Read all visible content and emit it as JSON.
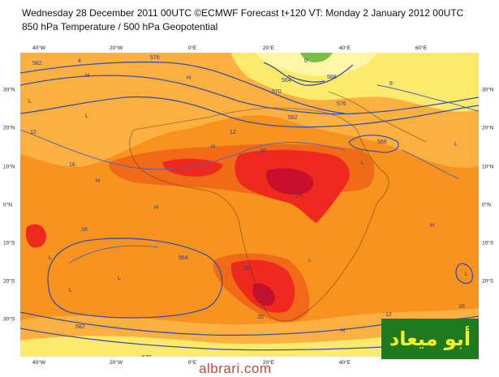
{
  "header": {
    "line1": "Wednesday 28 December 2011 00UTC ©ECMWF Forecast t+120 VT: Monday 2 January 2012 00UTC",
    "line2": "850 hPa Temperature / 500 hPa Geopotential"
  },
  "axes": {
    "lon_ticks": [
      "40°W",
      "20°W",
      "0°E",
      "20°E",
      "40°E",
      "60°E"
    ],
    "lat_ticks": [
      "30°N",
      "20°N",
      "10°N",
      "0°N",
      "10°S",
      "20°S",
      "30°S"
    ]
  },
  "contour_labels": {
    "geopotential": [
      "582",
      "576",
      "570",
      "564",
      "588",
      "582",
      "588",
      "576",
      "582",
      "570",
      "564"
    ],
    "temperature": [
      "12",
      "16",
      "20",
      "24",
      "20",
      "24",
      "16",
      "12",
      "8",
      "12",
      "16",
      "20",
      "4",
      "0"
    ]
  },
  "symbols": {
    "high": "H",
    "low": "L"
  },
  "colors": {
    "deep_red": "#c8102e",
    "red": "#ee2a1e",
    "orange_red": "#f06a18",
    "orange": "#f7931e",
    "light_orange": "#fbb040",
    "yellow": "#fde96a",
    "pale_yellow": "#fff6a8",
    "contour_blue": "#3c4fa8",
    "green": "#7bc042"
  },
  "watermark": {
    "arabic_text": "أبو ميعاد",
    "site": "albrari.com"
  }
}
